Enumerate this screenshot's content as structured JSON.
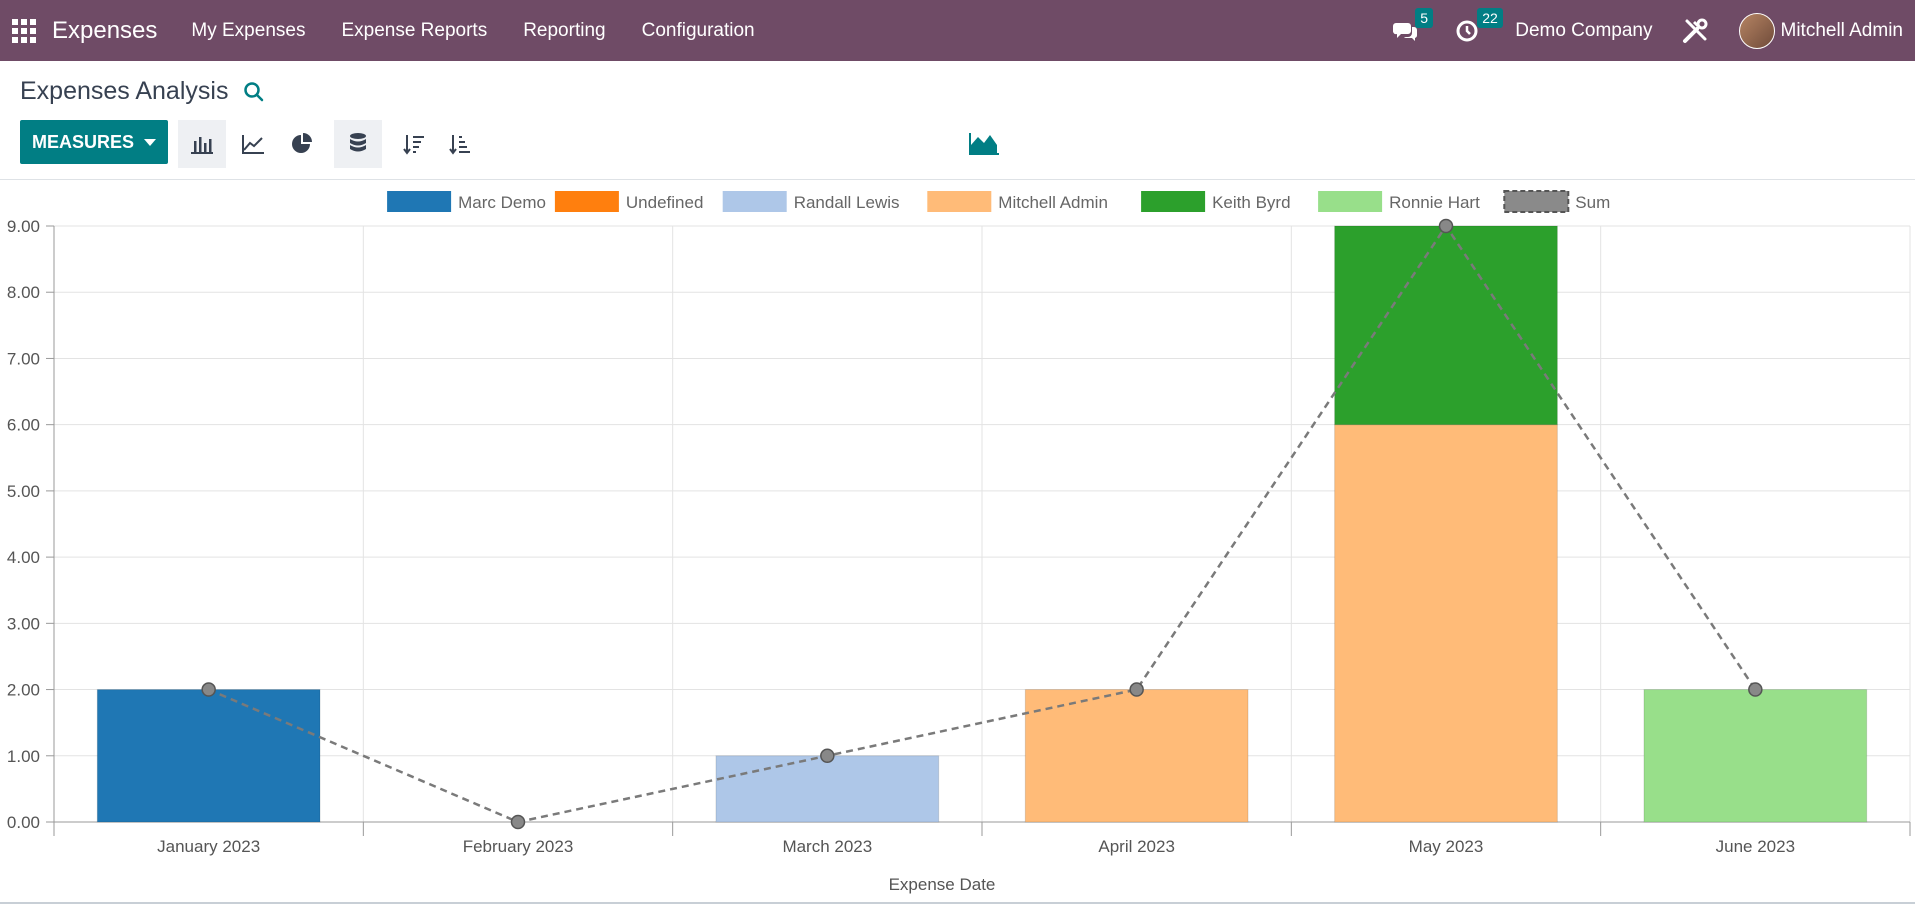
{
  "nav": {
    "app_title": "Expenses",
    "menu": [
      "My Expenses",
      "Expense Reports",
      "Reporting",
      "Configuration"
    ],
    "messages_count": "5",
    "activities_count": "22",
    "company": "Demo Company",
    "user": "Mitchell Admin"
  },
  "control": {
    "title": "Expenses Analysis",
    "measures_label": "MEASURES",
    "icons": [
      "bar-chart-icon",
      "line-chart-icon",
      "pie-chart-icon",
      "database-icon",
      "sort-descending-icon",
      "sort-ascending-icon",
      "area-chart-icon"
    ]
  },
  "colors": {
    "navbar": "#6f4b66",
    "accent": "#017e84"
  },
  "chart_data": {
    "type": "bar",
    "stacked": true,
    "categories": [
      "January 2023",
      "February 2023",
      "March 2023",
      "April 2023",
      "May 2023",
      "June 2023"
    ],
    "series": [
      {
        "name": "Marc Demo",
        "color": "#1f77b4",
        "values": [
          2,
          0,
          0,
          0,
          0,
          0
        ]
      },
      {
        "name": "Undefined",
        "color": "#ff7f0e",
        "values": [
          0,
          0,
          0,
          0,
          0,
          0
        ]
      },
      {
        "name": "Randall Lewis",
        "color": "#aec7e8",
        "values": [
          0,
          0,
          1,
          0,
          0,
          0
        ]
      },
      {
        "name": "Mitchell Admin",
        "color": "#ffbb78",
        "values": [
          0,
          0,
          0,
          2,
          6,
          0
        ]
      },
      {
        "name": "Keith Byrd",
        "color": "#2ca02c",
        "values": [
          0,
          0,
          0,
          0,
          3,
          0
        ]
      },
      {
        "name": "Ronnie Hart",
        "color": "#98df8a",
        "values": [
          0,
          0,
          0,
          0,
          0,
          2
        ]
      }
    ],
    "sum": {
      "name": "Sum",
      "values": [
        2,
        0,
        1,
        2,
        9,
        2
      ]
    },
    "yticks": [
      "0.00",
      "1.00",
      "2.00",
      "3.00",
      "4.00",
      "5.00",
      "6.00",
      "7.00",
      "8.00",
      "9.00"
    ],
    "ylim": [
      0,
      9
    ],
    "xlabel": "Expense Date",
    "legend_position": "top",
    "grid": true
  }
}
